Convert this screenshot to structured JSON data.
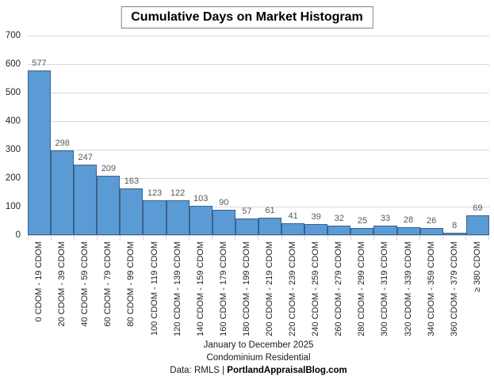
{
  "title": "Cumulative Days on Market Histogram",
  "footer": {
    "line1": "January to December 2025",
    "line2": "Condominium Residential",
    "line3_prefix": "Data: RMLS | ",
    "line3_bold": "PortlandAppraisalBlog.com"
  },
  "colors": {
    "bar_fill": "#5b9bd5",
    "bar_border": "#3a618c",
    "gridline": "#d9d9d9",
    "value_label": "#595959"
  },
  "chart_data": {
    "type": "bar",
    "title": "Cumulative Days on Market Histogram",
    "categories": [
      "0 CDOM - 19 CDOM",
      "20 CDOM - 39 CDOM",
      "40 CDOM - 59 CDOM",
      "60 CDOM - 79 CDOM",
      "80 CDOM - 99 CDOM",
      "100 CDOM - 119 CDOM",
      "120 CDOM - 139 CDOM",
      "140 CDOM - 159 CDOM",
      "160 CDOM - 179 CDOM",
      "180 CDOM - 199 CDOM",
      "200 CDOM - 219 CDOM",
      "220 CDOM - 239 CDOM",
      "240 CDOM - 259 CDOM",
      "260 CDOM - 279 CDOM",
      "280 CDOM - 299 CDOM",
      "300 CDOM - 319 CDOM",
      "320 CDOM - 339 CDOM",
      "340 CDOM - 359 CDOM",
      "360 CDOM - 379 CDOM",
      "≥ 380 CDOM"
    ],
    "values": [
      577,
      298,
      247,
      209,
      163,
      123,
      122,
      103,
      90,
      57,
      61,
      41,
      39,
      32,
      25,
      33,
      28,
      26,
      8,
      69
    ],
    "xlabel": "",
    "ylabel": "",
    "ylim": [
      0,
      700
    ],
    "ytick_step": 100,
    "grid": true,
    "legend": "none",
    "data_labels": true
  }
}
